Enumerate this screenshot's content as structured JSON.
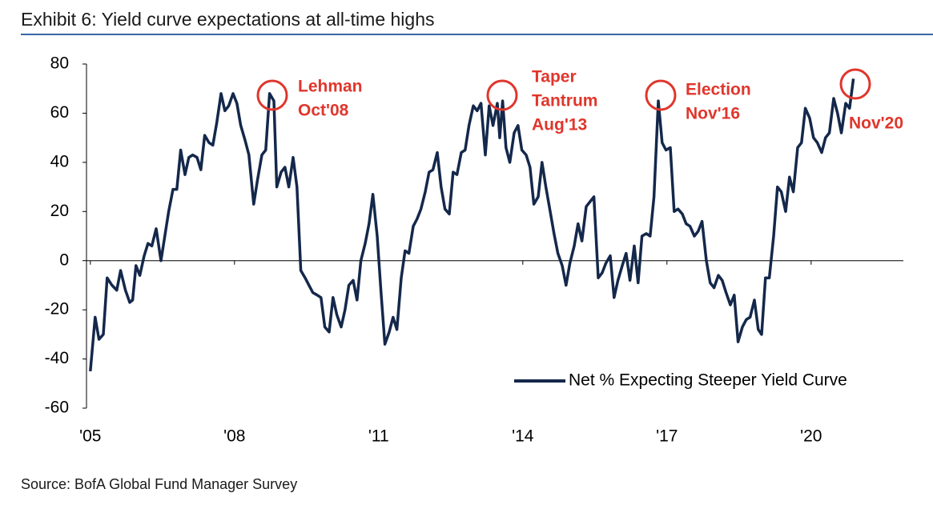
{
  "chart_data": {
    "type": "line",
    "title": "Exhibit 6: Yield curve expectations at all-time highs",
    "source": "Source: BofA Global Fund Manager Survey",
    "xlim": [
      2004.92,
      2021.92
    ],
    "xticks": [
      {
        "value": 2005,
        "label": "'05"
      },
      {
        "value": 2008,
        "label": "'08"
      },
      {
        "value": 2011,
        "label": "'11"
      },
      {
        "value": 2014,
        "label": "'14"
      },
      {
        "value": 2017,
        "label": "'17"
      },
      {
        "value": 2020,
        "label": "'20"
      }
    ],
    "ylim": [
      -60,
      80
    ],
    "yticks": [
      -60,
      -40,
      -20,
      0,
      20,
      40,
      60,
      80
    ],
    "annotations": [
      {
        "lines": [
          "Lehman",
          "Oct'08"
        ]
      },
      {
        "lines": [
          "Taper",
          "Tantrum",
          "Aug'13"
        ]
      },
      {
        "lines": [
          "Election",
          "Nov'16"
        ]
      },
      {
        "lines": [
          "Nov'20"
        ]
      }
    ],
    "series": [
      {
        "name": "Net % Expecting Steeper Yield Curve",
        "color": "#14284b",
        "x": [
          2005.0,
          2005.1,
          2005.18,
          2005.27,
          2005.35,
          2005.45,
          2005.55,
          2005.63,
          2005.73,
          2005.82,
          2005.88,
          2005.95,
          2006.03,
          2006.12,
          2006.2,
          2006.28,
          2006.37,
          2006.47,
          2006.55,
          2006.63,
          2006.72,
          2006.8,
          2006.88,
          2006.97,
          2007.05,
          2007.13,
          2007.22,
          2007.3,
          2007.38,
          2007.47,
          2007.55,
          2007.63,
          2007.72,
          2007.8,
          2007.88,
          2007.97,
          2008.05,
          2008.13,
          2008.22,
          2008.3,
          2008.4,
          2008.48,
          2008.57,
          2008.65,
          2008.73,
          2008.82,
          2008.88,
          2008.97,
          2009.05,
          2009.13,
          2009.22,
          2009.3,
          2009.38,
          2009.47,
          2009.55,
          2009.63,
          2009.72,
          2009.8,
          2009.88,
          2009.97,
          2010.05,
          2010.13,
          2010.22,
          2010.3,
          2010.38,
          2010.47,
          2010.55,
          2010.63,
          2010.72,
          2010.8,
          2010.88,
          2010.97,
          2011.05,
          2011.13,
          2011.22,
          2011.3,
          2011.38,
          2011.47,
          2011.55,
          2011.63,
          2011.72,
          2011.8,
          2011.88,
          2011.97,
          2012.05,
          2012.13,
          2012.22,
          2012.3,
          2012.38,
          2012.47,
          2012.55,
          2012.63,
          2012.72,
          2012.8,
          2012.88,
          2012.97,
          2013.05,
          2013.13,
          2013.22,
          2013.3,
          2013.38,
          2013.47,
          2013.52,
          2013.58,
          2013.65,
          2013.73,
          2013.82,
          2013.9,
          2013.98,
          2014.07,
          2014.15,
          2014.23,
          2014.32,
          2014.4,
          2014.48,
          2014.57,
          2014.65,
          2014.73,
          2014.82,
          2014.9,
          2014.98,
          2015.07,
          2015.15,
          2015.23,
          2015.32,
          2015.4,
          2015.48,
          2015.57,
          2015.65,
          2015.73,
          2015.82,
          2015.9,
          2015.98,
          2016.07,
          2016.15,
          2016.23,
          2016.32,
          2016.4,
          2016.48,
          2016.57,
          2016.65,
          2016.73,
          2016.82,
          2016.9,
          2016.98,
          2017.07,
          2017.15,
          2017.23,
          2017.32,
          2017.4,
          2017.48,
          2017.57,
          2017.65,
          2017.73,
          2017.82,
          2017.9,
          2017.98,
          2018.07,
          2018.15,
          2018.23,
          2018.32,
          2018.4,
          2018.48,
          2018.57,
          2018.65,
          2018.73,
          2018.82,
          2018.9,
          2018.97,
          2019.05,
          2019.13,
          2019.22,
          2019.3,
          2019.38,
          2019.47,
          2019.55,
          2019.63,
          2019.72,
          2019.8,
          2019.88,
          2019.97,
          2020.05,
          2020.13,
          2020.22,
          2020.3,
          2020.38,
          2020.47,
          2020.55,
          2020.63,
          2020.72,
          2020.8,
          2020.88
        ],
        "values": [
          -45,
          -23,
          -32,
          -30,
          -7,
          -10,
          -12,
          -4,
          -12,
          -17,
          -16,
          -2,
          -6,
          2,
          7,
          6,
          13,
          0,
          10,
          20,
          29,
          29,
          45,
          35,
          42,
          43,
          42,
          37,
          51,
          48,
          47,
          56,
          68,
          61,
          63,
          68,
          64,
          55,
          49,
          43,
          23,
          33,
          43,
          45,
          68,
          65,
          30,
          36,
          38,
          30,
          42,
          30,
          -4,
          -7,
          -10,
          -13,
          -14,
          -15,
          -27,
          -29,
          -15,
          -22,
          -27,
          -20,
          -10,
          -8,
          -16,
          0,
          7,
          15,
          27,
          10,
          -13,
          -34,
          -29,
          -23,
          -28,
          -7,
          4,
          3,
          14,
          17,
          21,
          28,
          36,
          37,
          44,
          30,
          21,
          19,
          36,
          35,
          44,
          45,
          55,
          63,
          61,
          64,
          43,
          63,
          55,
          64,
          50,
          65,
          46,
          40,
          52,
          55,
          45,
          43,
          38,
          23,
          26,
          40,
          30,
          20,
          11,
          3,
          -2,
          -10,
          -1,
          6,
          15,
          8,
          22,
          24,
          26,
          -7,
          -5,
          -1,
          2,
          -15,
          -8,
          -2,
          3,
          -8,
          6,
          -9,
          10,
          11,
          10,
          26,
          65,
          48,
          45,
          46,
          20,
          21,
          19,
          15,
          14,
          10,
          12,
          16,
          0,
          -9,
          -11,
          -6,
          -8,
          -13,
          -18,
          -14,
          -33,
          -27,
          -24,
          -23,
          -16,
          -28,
          -30,
          -7,
          -7,
          10,
          30,
          28,
          20,
          34,
          28,
          46,
          48,
          62,
          58,
          50,
          48,
          44,
          50,
          52,
          66,
          60,
          52,
          64,
          62,
          74
        ]
      }
    ]
  }
}
